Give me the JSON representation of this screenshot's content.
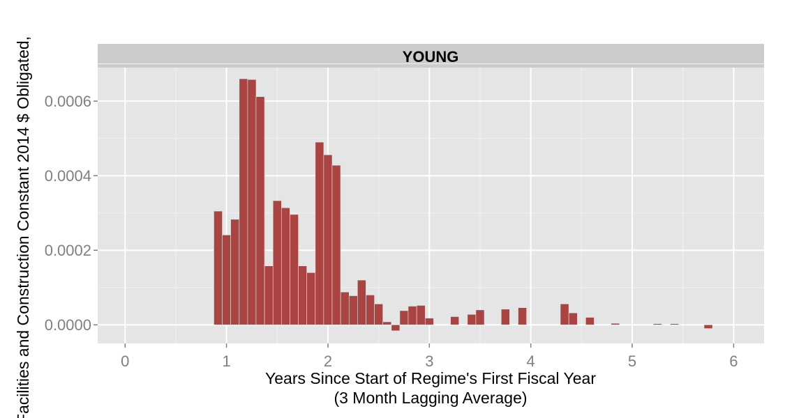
{
  "chart_data": {
    "type": "bar",
    "facet_label": "YOUNG",
    "xlabel_line1": "Years Since Start of Regime's First Fiscal Year",
    "xlabel_line2": "(3 Month Lagging Average)",
    "ylabel": "Facilities and Construction Constant 2014 $ Obligated,",
    "xlim": [
      -0.27,
      6.3
    ],
    "ylim": [
      -5e-05,
      0.00069
    ],
    "x_ticks": [
      0,
      1,
      2,
      3,
      4,
      5,
      6
    ],
    "y_ticks": [
      0.0,
      0.0002,
      0.0004,
      0.0006
    ],
    "y_tick_labels": [
      "0.0000",
      "0.0002",
      "0.0004",
      "0.0006"
    ],
    "bar_width": 0.0833,
    "x": [
      0.917,
      1.0,
      1.083,
      1.167,
      1.25,
      1.333,
      1.417,
      1.5,
      1.583,
      1.667,
      1.75,
      1.833,
      1.917,
      2.0,
      2.083,
      2.167,
      2.25,
      2.333,
      2.417,
      2.5,
      2.583,
      2.667,
      2.75,
      2.833,
      2.917,
      3.0,
      3.25,
      3.417,
      3.5,
      3.75,
      3.917,
      4.333,
      4.417,
      4.583,
      4.833,
      5.25,
      5.417,
      5.75
    ],
    "values": [
      0.000305,
      0.000241,
      0.000283,
      0.00066,
      0.000658,
      0.000612,
      0.000158,
      0.000333,
      0.000314,
      0.000296,
      0.000158,
      0.00014,
      0.00049,
      0.000456,
      0.000428,
      8.8e-05,
      7.8e-05,
      0.00012,
      8e-05,
      5.6e-05,
      8e-06,
      -1.6e-05,
      3.8e-05,
      5e-05,
      5.2e-05,
      1.8e-05,
      2.2e-05,
      2.8e-05,
      4e-05,
      4.2e-05,
      4.6e-05,
      5.6e-05,
      3.2e-05,
      2e-05,
      4e-06,
      3e-06,
      3e-06,
      -1e-05
    ],
    "bar_color": "#a94442",
    "panel_background": "#e5e5e5",
    "strip_background": "#cccccc",
    "grid": true,
    "legend": "none"
  }
}
